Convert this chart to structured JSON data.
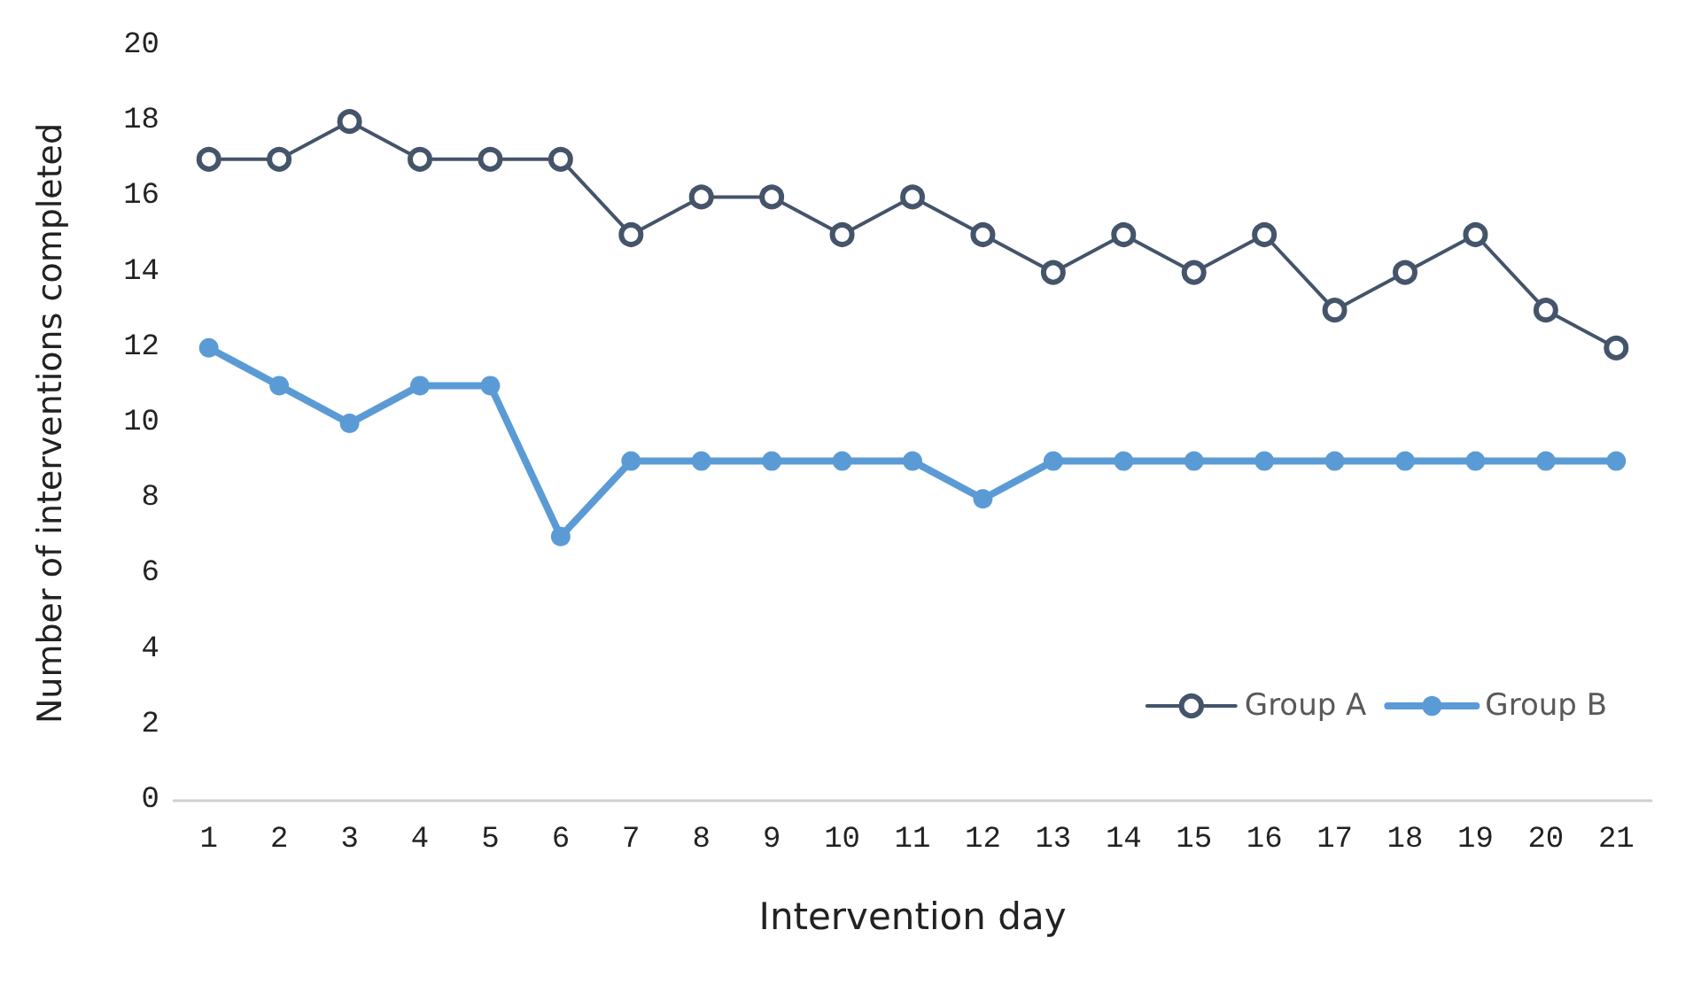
{
  "chart_data": {
    "type": "line",
    "xlabel": "Intervention day",
    "ylabel": "Number of interventions completed",
    "categories": [
      "1",
      "2",
      "3",
      "4",
      "5",
      "6",
      "7",
      "8",
      "9",
      "10",
      "11",
      "12",
      "13",
      "14",
      "15",
      "16",
      "17",
      "18",
      "19",
      "20",
      "21"
    ],
    "series": [
      {
        "name": "Group A",
        "color": "#44546a",
        "values": [
          17,
          17,
          18,
          17,
          17,
          17,
          15,
          16,
          16,
          15,
          16,
          15,
          14,
          15,
          14,
          15,
          13,
          14,
          15,
          13,
          12
        ]
      },
      {
        "name": "Group B",
        "color": "#5b9bd5",
        "values": [
          12,
          11,
          10,
          11,
          11,
          7,
          9,
          9,
          9,
          9,
          9,
          8,
          9,
          9,
          9,
          9,
          9,
          9,
          9,
          9,
          9
        ]
      }
    ],
    "ylim": [
      0,
      20
    ],
    "yticks": [
      0,
      2,
      4,
      6,
      8,
      10,
      12,
      14,
      16,
      18,
      20
    ],
    "grid": false,
    "legend": "bottom right",
    "marker": "circle",
    "line_style": "solid"
  }
}
